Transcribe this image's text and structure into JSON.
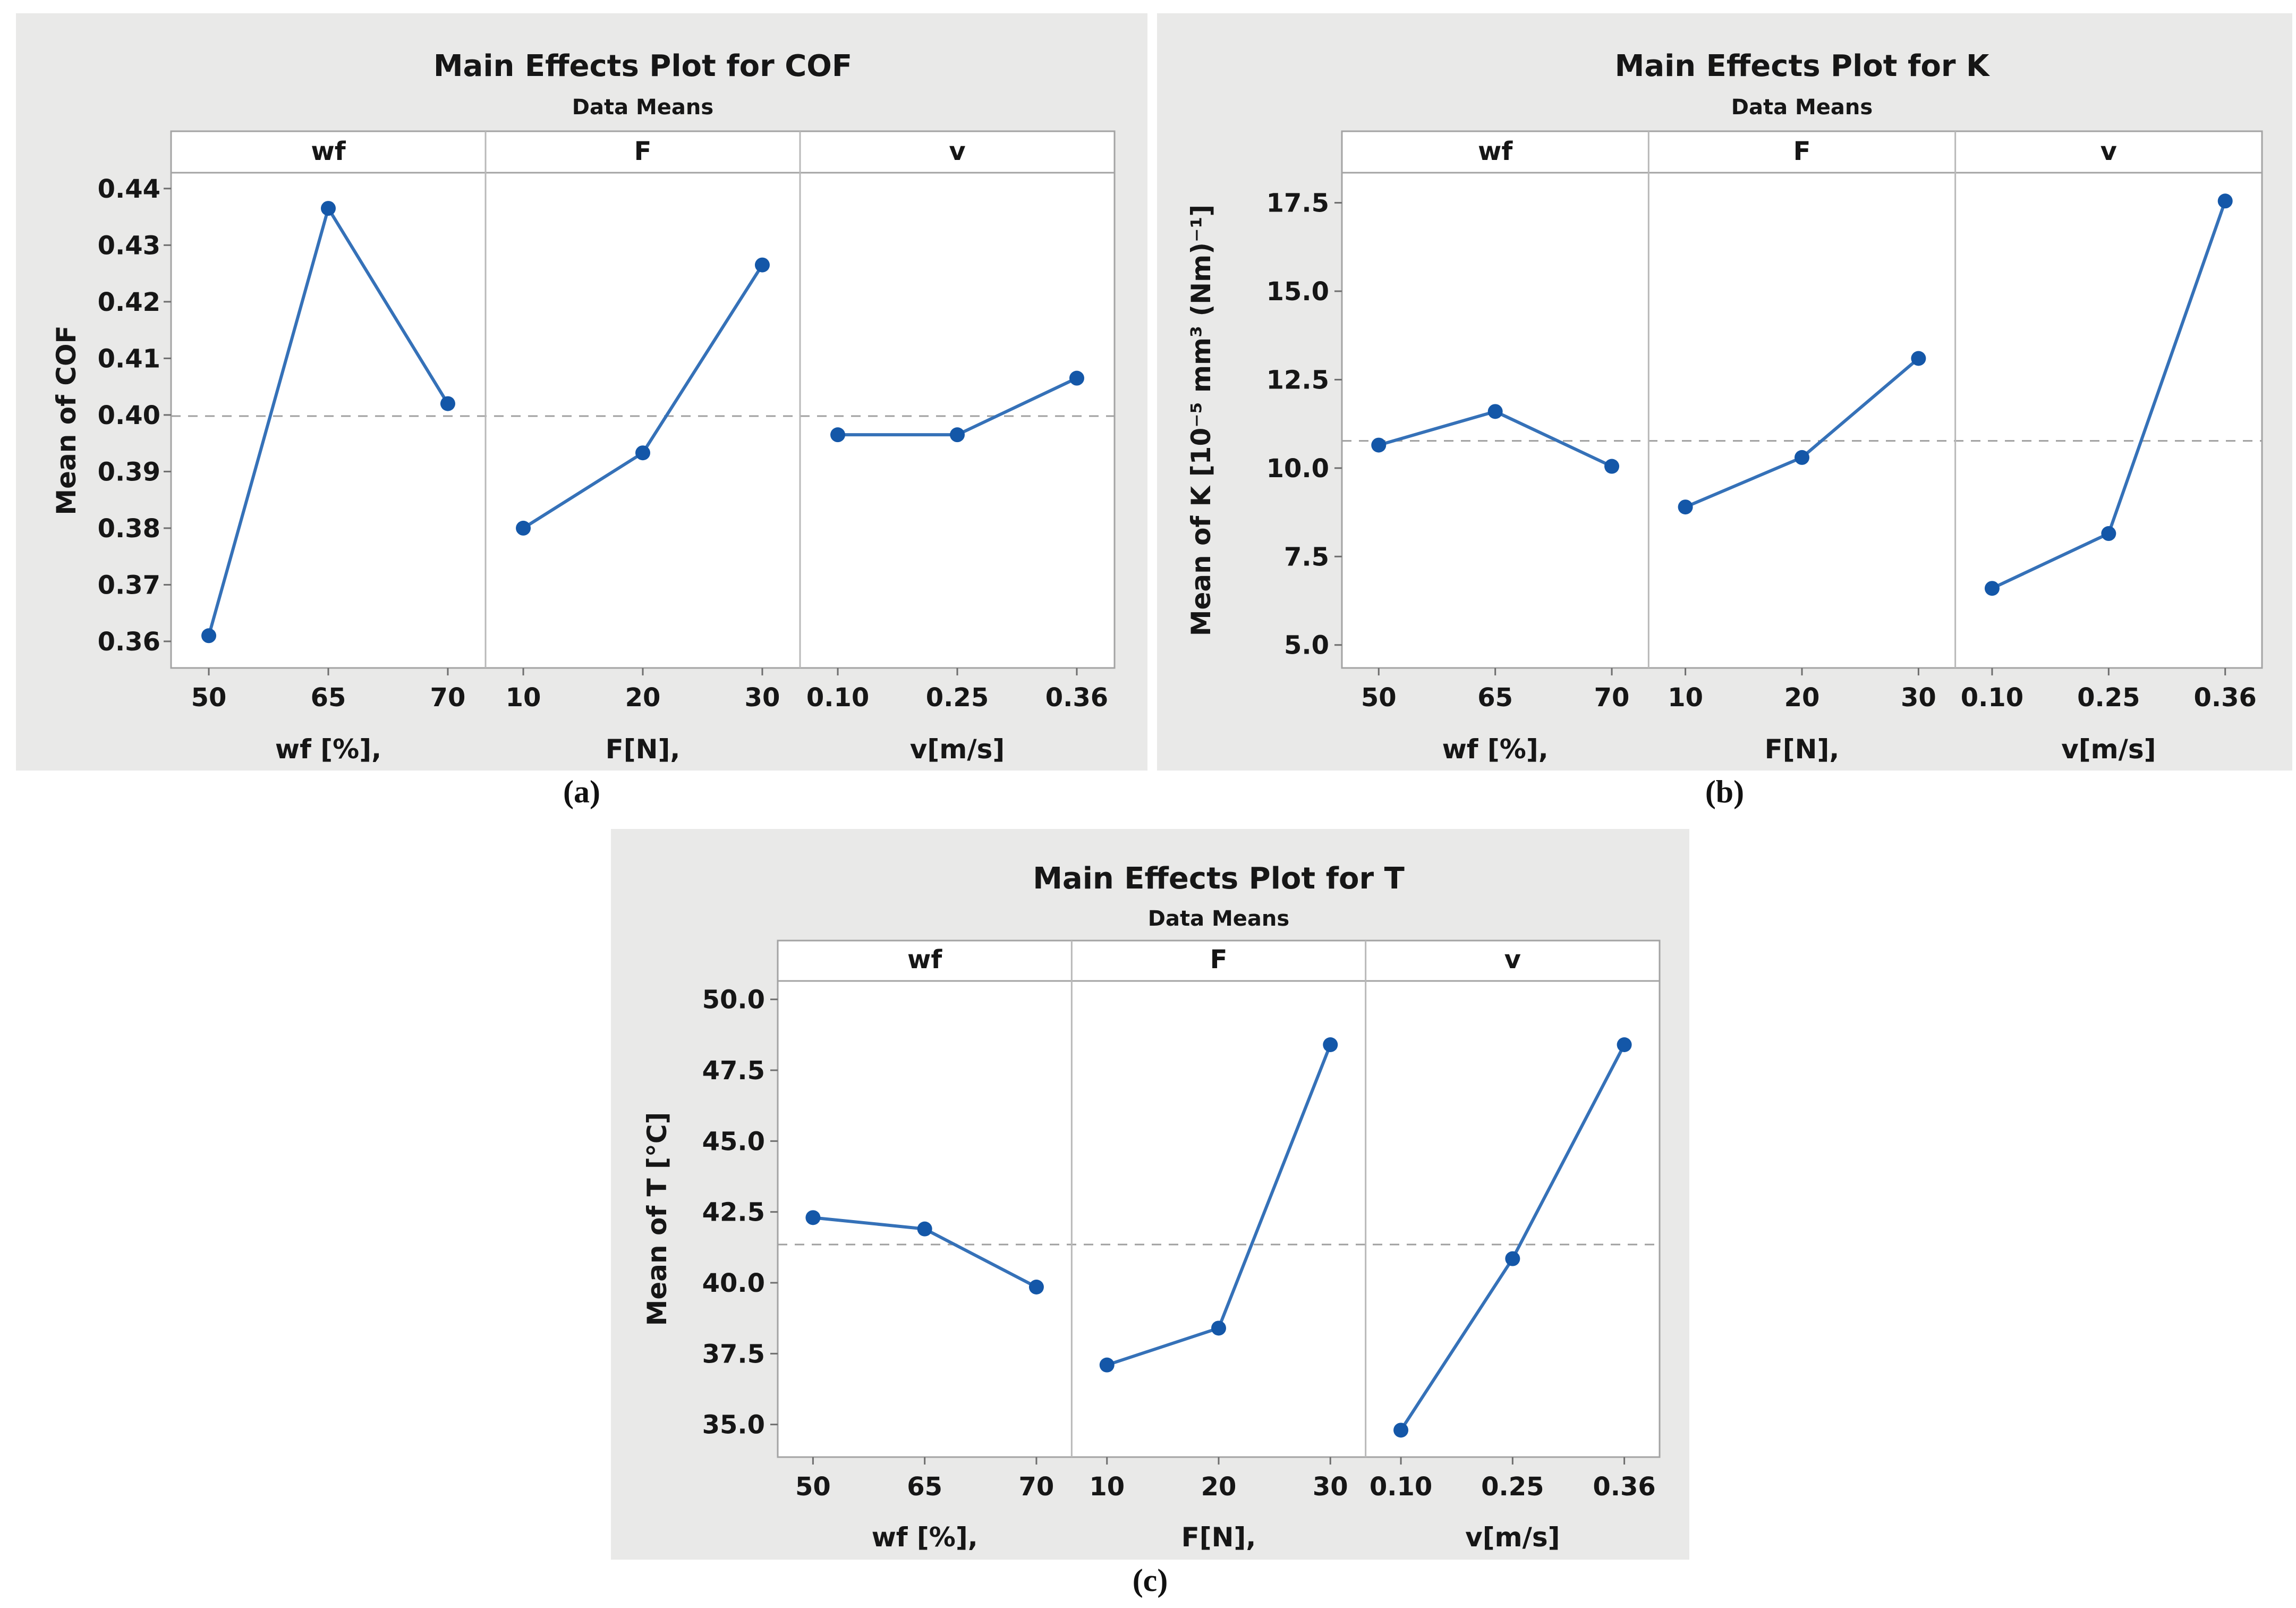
{
  "page": {
    "background": "#ffffff"
  },
  "captions": {
    "a": "(a)",
    "b": "(b)",
    "c": "(c)"
  },
  "colors": {
    "panel_bg": "#e9e9e8",
    "plot_bg": "#ffffff",
    "plot_border": "#a3a3a3",
    "divider": "#b9b9b9",
    "tick": "#6e6e6e",
    "dashed": "#a0a0a0",
    "line": "#3571b8",
    "marker": "#1457a8",
    "text": "#161616"
  },
  "chart_data": [
    {
      "id": "cof",
      "type": "line",
      "title": "Main Effects Plot for COF",
      "subtitle": "Data Means",
      "ylabel": "Mean of COF",
      "ylim": [
        0.3553,
        0.4428
      ],
      "yticks": [
        0.36,
        0.37,
        0.38,
        0.39,
        0.4,
        0.41,
        0.42,
        0.43,
        0.44
      ],
      "ytick_labels": [
        "0.36",
        "0.37",
        "0.38",
        "0.39",
        "0.40",
        "0.41",
        "0.42",
        "0.43",
        "0.44"
      ],
      "mean_line": 0.3998,
      "grid": false,
      "legend": "none",
      "panels": [
        {
          "header": "wf",
          "xlabel": "wf [%],",
          "categories": [
            "50",
            "65",
            "70"
          ],
          "values": [
            0.361,
            0.4365,
            0.402
          ]
        },
        {
          "header": "F",
          "xlabel": "F[N],",
          "categories": [
            "10",
            "20",
            "30"
          ],
          "values": [
            0.38,
            0.3933,
            0.4265
          ]
        },
        {
          "header": "v",
          "xlabel": "v[m/s]",
          "categories": [
            "0.10",
            "0.25",
            "0.36"
          ],
          "values": [
            0.3965,
            0.3965,
            0.4065
          ]
        }
      ]
    },
    {
      "id": "k",
      "type": "line",
      "title": "Main Effects Plot for K",
      "subtitle": "Data Means",
      "ylabel": "Mean of K [10⁻⁵ mm³ (Nm)⁻¹]",
      "ylim": [
        4.35,
        18.35
      ],
      "yticks": [
        5.0,
        7.5,
        10.0,
        12.5,
        15.0,
        17.5
      ],
      "ytick_labels": [
        "5.0",
        "7.5",
        "10.0",
        "12.5",
        "15.0",
        "17.5"
      ],
      "mean_line": 10.77,
      "grid": false,
      "legend": "none",
      "panels": [
        {
          "header": "wf",
          "xlabel": "wf [%],",
          "categories": [
            "50",
            "65",
            "70"
          ],
          "values": [
            10.65,
            11.6,
            10.05
          ]
        },
        {
          "header": "F",
          "xlabel": "F[N],",
          "categories": [
            "10",
            "20",
            "30"
          ],
          "values": [
            8.9,
            10.3,
            13.1
          ]
        },
        {
          "header": "v",
          "xlabel": "v[m/s]",
          "categories": [
            "0.10",
            "0.25",
            "0.36"
          ],
          "values": [
            6.6,
            8.15,
            17.55
          ]
        }
      ]
    },
    {
      "id": "t",
      "type": "line",
      "title": "Main Effects Plot for T",
      "subtitle": "Data Means",
      "ylabel": "Mean of T  [°C]",
      "ylim": [
        33.85,
        50.65
      ],
      "yticks": [
        35.0,
        37.5,
        40.0,
        42.5,
        45.0,
        47.5,
        50.0
      ],
      "ytick_labels": [
        "35.0",
        "37.5",
        "40.0",
        "42.5",
        "45.0",
        "47.5",
        "50.0"
      ],
      "mean_line": 41.35,
      "grid": false,
      "legend": "none",
      "panels": [
        {
          "header": "wf",
          "xlabel": "wf [%],",
          "categories": [
            "50",
            "65",
            "70"
          ],
          "values": [
            42.3,
            41.9,
            39.85
          ]
        },
        {
          "header": "F",
          "xlabel": "F[N],",
          "categories": [
            "10",
            "20",
            "30"
          ],
          "values": [
            37.1,
            38.4,
            48.4
          ]
        },
        {
          "header": "v",
          "xlabel": "v[m/s]",
          "categories": [
            "0.10",
            "0.25",
            "0.36"
          ],
          "values": [
            34.8,
            40.85,
            48.4
          ]
        }
      ]
    }
  ]
}
